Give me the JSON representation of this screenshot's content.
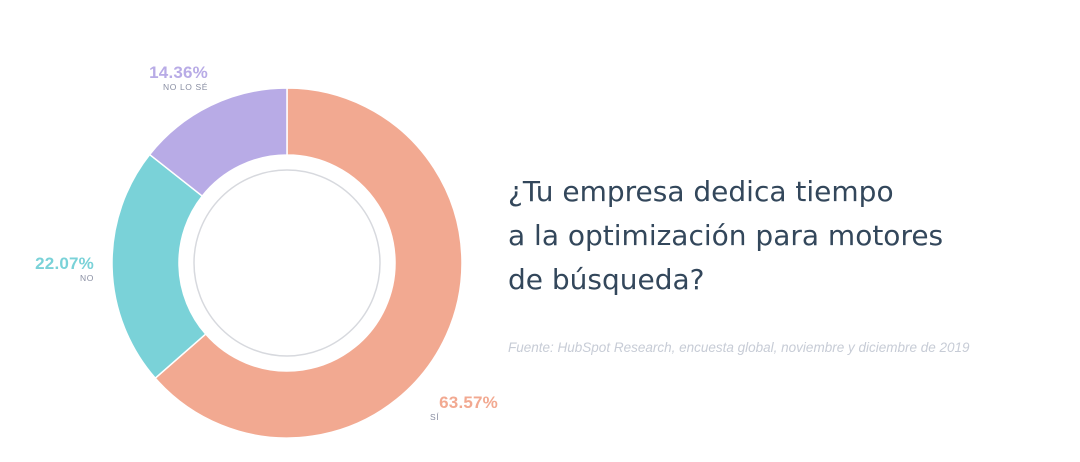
{
  "chart_data": {
    "type": "pie",
    "style": "donut",
    "title": "¿Tu empresa dedica tiempo a la optimización para motores de búsqueda?",
    "title_lines": [
      "¿Tu empresa dedica tiempo",
      "a la optimización para motores",
      "de búsqueda?"
    ],
    "source": "Fuente: HubSpot Research, encuesta global, noviembre y diciembre de 2019",
    "slices": [
      {
        "label": "SÍ",
        "value": 63.57,
        "display": "63.57%",
        "color": "#f2a991"
      },
      {
        "label": "NO",
        "value": 22.07,
        "display": "22.07%",
        "color": "#7ad2d8"
      },
      {
        "label": "NO LO SÉ",
        "value": 14.36,
        "display": "14.36%",
        "color": "#b8abe6"
      }
    ],
    "start_angle_deg": 0,
    "direction": "clockwise"
  },
  "colors": {
    "si": "#f2a991",
    "no": "#7ad2d8",
    "nolose": "#b8abe6",
    "title": "#33475b",
    "source": "#c7ccd6",
    "category_label": "#8a8fa3",
    "inner_ring": "#d7d9de"
  }
}
